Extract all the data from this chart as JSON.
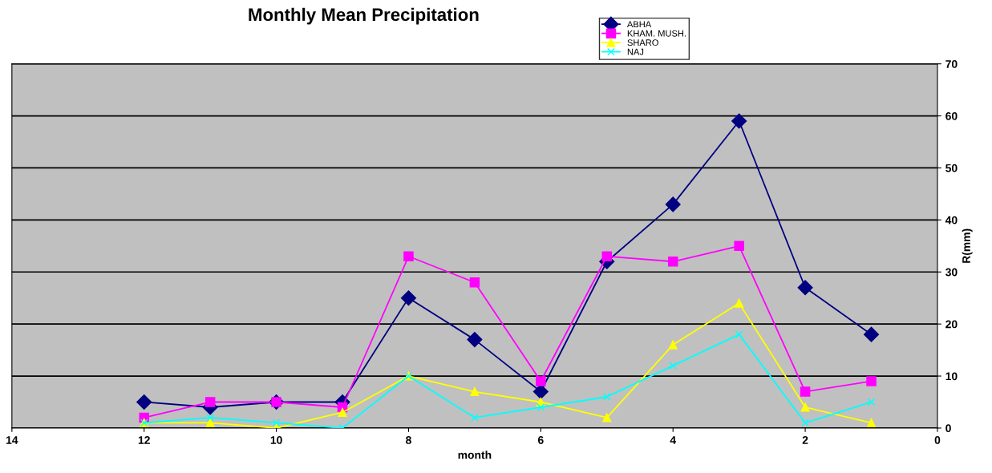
{
  "chart_data": {
    "type": "line",
    "title": "Monthly Mean Precipitation",
    "xlabel": "month",
    "ylabel": "R(mm)",
    "x": [
      12,
      11,
      10,
      9,
      8,
      7,
      6,
      5,
      4,
      3,
      2,
      1
    ],
    "series": [
      {
        "name": "ABHA",
        "color": "#000080",
        "marker": "diamond",
        "values": [
          5,
          4,
          5,
          5,
          25,
          17,
          7,
          32,
          43,
          59,
          27,
          18
        ]
      },
      {
        "name": "KHAM. MUSH.",
        "color": "#ff00ff",
        "marker": "square",
        "values": [
          2,
          5,
          5,
          4,
          33,
          28,
          9,
          33,
          32,
          35,
          7,
          9
        ]
      },
      {
        "name": "SHARO",
        "color": "#ffff00",
        "marker": "triangle",
        "values": [
          1,
          1,
          0,
          3,
          10,
          7,
          5,
          2,
          16,
          24,
          4,
          1
        ]
      },
      {
        "name": "NAJ",
        "color": "#00ffff",
        "marker": "cross",
        "values": [
          1,
          2,
          1,
          0,
          10,
          2,
          4,
          6,
          12,
          18,
          1,
          5
        ]
      }
    ],
    "xlim": [
      14,
      0
    ],
    "xticks": [
      14,
      12,
      10,
      8,
      6,
      4,
      2,
      0
    ],
    "ylim": [
      0,
      70
    ],
    "yticks": [
      0,
      10,
      20,
      30,
      40,
      50,
      60,
      70
    ],
    "grid": "y",
    "legend": "top right"
  }
}
